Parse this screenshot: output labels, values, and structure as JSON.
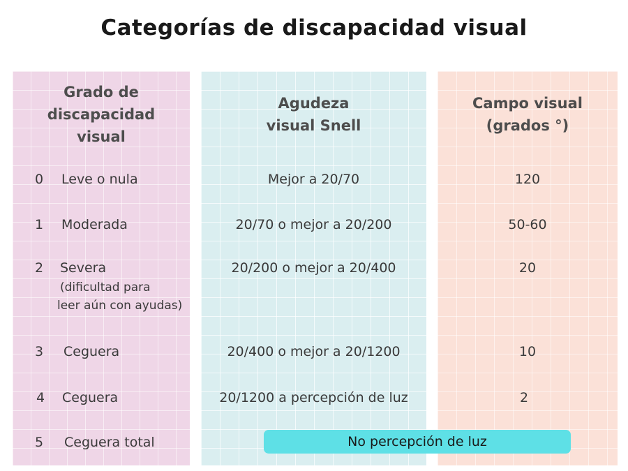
{
  "title": "Categorías de discapacidad visual",
  "headers": {
    "grade": [
      "Grado de",
      "discapacidad",
      "visual"
    ],
    "acuity": [
      "Agudeza",
      "visual Snell"
    ],
    "field": [
      "Campo visual",
      "(grados °)"
    ]
  },
  "rows": [
    {
      "grade": "0",
      "label": "Leve o nula",
      "acuity": "Mejor a 20/70",
      "field": "120"
    },
    {
      "grade": "1",
      "label": "Moderada",
      "acuity": "20/70 o mejor a 20/200",
      "field": "50-60"
    },
    {
      "grade": "2",
      "label": "Severa",
      "note": [
        "(dificultad para",
        "leer aún con ayudas)"
      ],
      "acuity": "20/200 o mejor a 20/400",
      "field": "20"
    },
    {
      "grade": "3",
      "label": "Ceguera",
      "acuity": "20/400 o mejor a 20/1200",
      "field": "10"
    },
    {
      "grade": "4",
      "label": "Ceguera",
      "acuity": "20/1200 a percepción de luz",
      "field": "2"
    },
    {
      "grade": "5",
      "label": "Ceguera total"
    }
  ],
  "highlight": "No percepción de luz",
  "colors": {
    "grade_column": "#efd6e7",
    "acuity_column": "#daeef0",
    "field_column": "#fbe1d8",
    "highlight": "#5ee0e6"
  }
}
